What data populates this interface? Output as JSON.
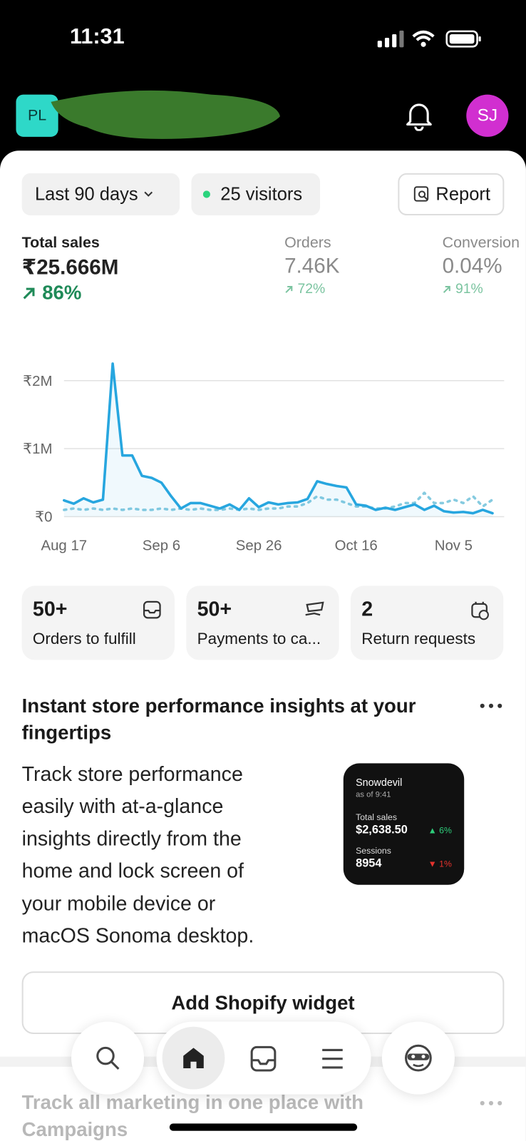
{
  "status_bar": {
    "time": "11:31"
  },
  "header": {
    "store_initials": "PL",
    "avatar": "SJ"
  },
  "filters": {
    "date_range": "Last 90 days",
    "visitors": "25 visitors",
    "report": "Report"
  },
  "metrics": [
    {
      "label": "Total sales",
      "value": "₹25.666M",
      "change": "86%"
    },
    {
      "label": "Orders",
      "value": "7.46K",
      "change": "72%"
    },
    {
      "label": "Conversion",
      "value": "0.04%",
      "change": "91%"
    }
  ],
  "chart_data": {
    "type": "line",
    "categories": [
      "Aug 17",
      null,
      null,
      null,
      null,
      null,
      null,
      null,
      null,
      null,
      "Sep 6",
      null,
      null,
      null,
      null,
      null,
      null,
      null,
      null,
      null,
      "Sep 26",
      null,
      null,
      null,
      null,
      null,
      null,
      null,
      null,
      null,
      "Oct 16",
      null,
      null,
      null,
      null,
      null,
      null,
      null,
      null,
      null,
      "Nov 5",
      null,
      null,
      null,
      null
    ],
    "series": [
      {
        "color": "#27a6df",
        "line_style": "solid",
        "fill_under": true,
        "values": [
          240000,
          190000,
          270000,
          210000,
          250000,
          2250000,
          900000,
          900000,
          600000,
          570000,
          500000,
          300000,
          120000,
          200000,
          200000,
          160000,
          120000,
          180000,
          100000,
          270000,
          140000,
          210000,
          180000,
          200000,
          210000,
          260000,
          520000,
          480000,
          450000,
          430000,
          180000,
          160000,
          100000,
          130000,
          100000,
          140000,
          180000,
          100000,
          160000,
          80000,
          60000,
          70000,
          50000,
          100000,
          50000
        ]
      },
      {
        "color": "#86cbe0",
        "line_style": "dotted",
        "fill_under": false,
        "values": [
          100000,
          120000,
          100000,
          120000,
          100000,
          120000,
          100000,
          120000,
          100000,
          100000,
          120000,
          100000,
          120000,
          100000,
          120000,
          100000,
          100000,
          120000,
          100000,
          120000,
          100000,
          120000,
          120000,
          150000,
          150000,
          200000,
          300000,
          250000,
          250000,
          200000,
          150000,
          150000,
          120000,
          120000,
          150000,
          200000,
          200000,
          350000,
          200000,
          200000,
          250000,
          200000,
          300000,
          150000,
          250000
        ]
      }
    ],
    "ylim": [
      0,
      2300000
    ],
    "yticks": [
      {
        "value": 0,
        "label": "₹0"
      },
      {
        "value": 1000000,
        "label": "₹1M"
      },
      {
        "value": 2000000,
        "label": "₹2M"
      }
    ],
    "grid": true
  },
  "tiles": [
    {
      "value": "50+",
      "label": "Orders to fulfill"
    },
    {
      "value": "50+",
      "label": "Payments to ca..."
    },
    {
      "value": "2",
      "label": "Return requests"
    }
  ],
  "insight": {
    "title": "Instant store performance insights at your fingertips",
    "body": "Track store performance easily with at-a-glance insights directly from the home and lock screen of your mobile device or macOS Sonoma desktop.",
    "widget": {
      "store": "Snowdevil",
      "as_of": "as of 9:41",
      "sales_label": "Total sales",
      "sales_value": "$2,638.50",
      "sales_change": "6%",
      "sessions_label": "Sessions",
      "sessions_value": "8954",
      "sessions_change": "1%"
    },
    "button": "Add Shopify widget"
  },
  "next_card": {
    "title": "Track all marketing in one place with Campaigns"
  }
}
